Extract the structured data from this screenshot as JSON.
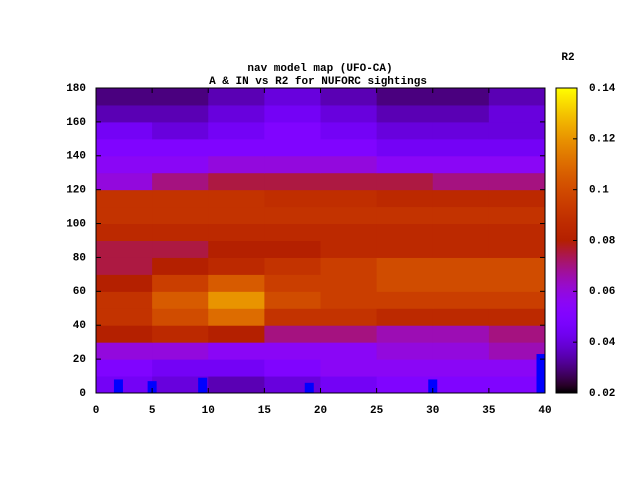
{
  "chart_data": {
    "type": "heatmap",
    "title": "nav model map (UFO-CA)",
    "subtitle": "A & IN vs R2 for NUFORC sightings",
    "colorbar_label": "R2",
    "palette": "rgbformulae 7,5,15",
    "xlim": [
      0,
      40
    ],
    "ylim": [
      0,
      180
    ],
    "xticks": [
      0,
      5,
      10,
      15,
      20,
      25,
      30,
      35,
      40
    ],
    "yticks": [
      0,
      20,
      40,
      60,
      80,
      100,
      120,
      140,
      160,
      180
    ],
    "cblim": [
      0.02,
      0.14
    ],
    "cbticks": [
      0.02,
      0.04,
      0.06,
      0.08,
      0.1,
      0.12,
      0.14
    ],
    "x_edges": [
      0,
      5,
      10,
      15,
      20,
      25,
      30,
      35,
      40
    ],
    "y_edges": [
      0,
      10,
      20,
      30,
      40,
      50,
      60,
      70,
      80,
      90,
      100,
      110,
      120,
      130,
      140,
      150,
      160,
      170,
      180
    ],
    "z": [
      [
        0.045,
        0.04,
        0.035,
        0.04,
        0.045,
        0.05,
        0.05,
        0.05
      ],
      [
        0.05,
        0.045,
        0.045,
        0.05,
        0.055,
        0.055,
        0.055,
        0.055
      ],
      [
        0.06,
        0.06,
        0.055,
        0.055,
        0.055,
        0.06,
        0.06,
        0.065
      ],
      [
        0.08,
        0.085,
        0.08,
        0.07,
        0.07,
        0.065,
        0.065,
        0.07
      ],
      [
        0.09,
        0.1,
        0.11,
        0.09,
        0.09,
        0.085,
        0.085,
        0.085
      ],
      [
        0.09,
        0.105,
        0.12,
        0.1,
        0.095,
        0.095,
        0.095,
        0.095
      ],
      [
        0.08,
        0.095,
        0.105,
        0.095,
        0.095,
        0.1,
        0.1,
        0.1
      ],
      [
        0.075,
        0.08,
        0.085,
        0.09,
        0.095,
        0.1,
        0.1,
        0.1
      ],
      [
        0.075,
        0.075,
        0.08,
        0.08,
        0.085,
        0.085,
        0.085,
        0.085
      ],
      [
        0.085,
        0.085,
        0.085,
        0.085,
        0.085,
        0.085,
        0.085,
        0.085
      ],
      [
        0.09,
        0.09,
        0.09,
        0.09,
        0.09,
        0.09,
        0.09,
        0.09
      ],
      [
        0.09,
        0.09,
        0.09,
        0.088,
        0.088,
        0.085,
        0.085,
        0.085
      ],
      [
        0.06,
        0.07,
        0.075,
        0.075,
        0.075,
        0.075,
        0.07,
        0.07
      ],
      [
        0.055,
        0.055,
        0.06,
        0.06,
        0.06,
        0.055,
        0.055,
        0.055
      ],
      [
        0.05,
        0.05,
        0.05,
        0.05,
        0.05,
        0.045,
        0.045,
        0.045
      ],
      [
        0.045,
        0.04,
        0.045,
        0.05,
        0.045,
        0.04,
        0.04,
        0.04
      ],
      [
        0.035,
        0.035,
        0.04,
        0.045,
        0.04,
        0.035,
        0.035,
        0.04
      ],
      [
        0.03,
        0.03,
        0.035,
        0.04,
        0.035,
        0.03,
        0.03,
        0.035
      ]
    ],
    "series": [
      {
        "color": "#0000ff",
        "x": [
          2,
          5,
          9.5,
          19,
          30,
          40
        ],
        "values": [
          8,
          7,
          9,
          6,
          8,
          23
        ]
      }
    ]
  }
}
